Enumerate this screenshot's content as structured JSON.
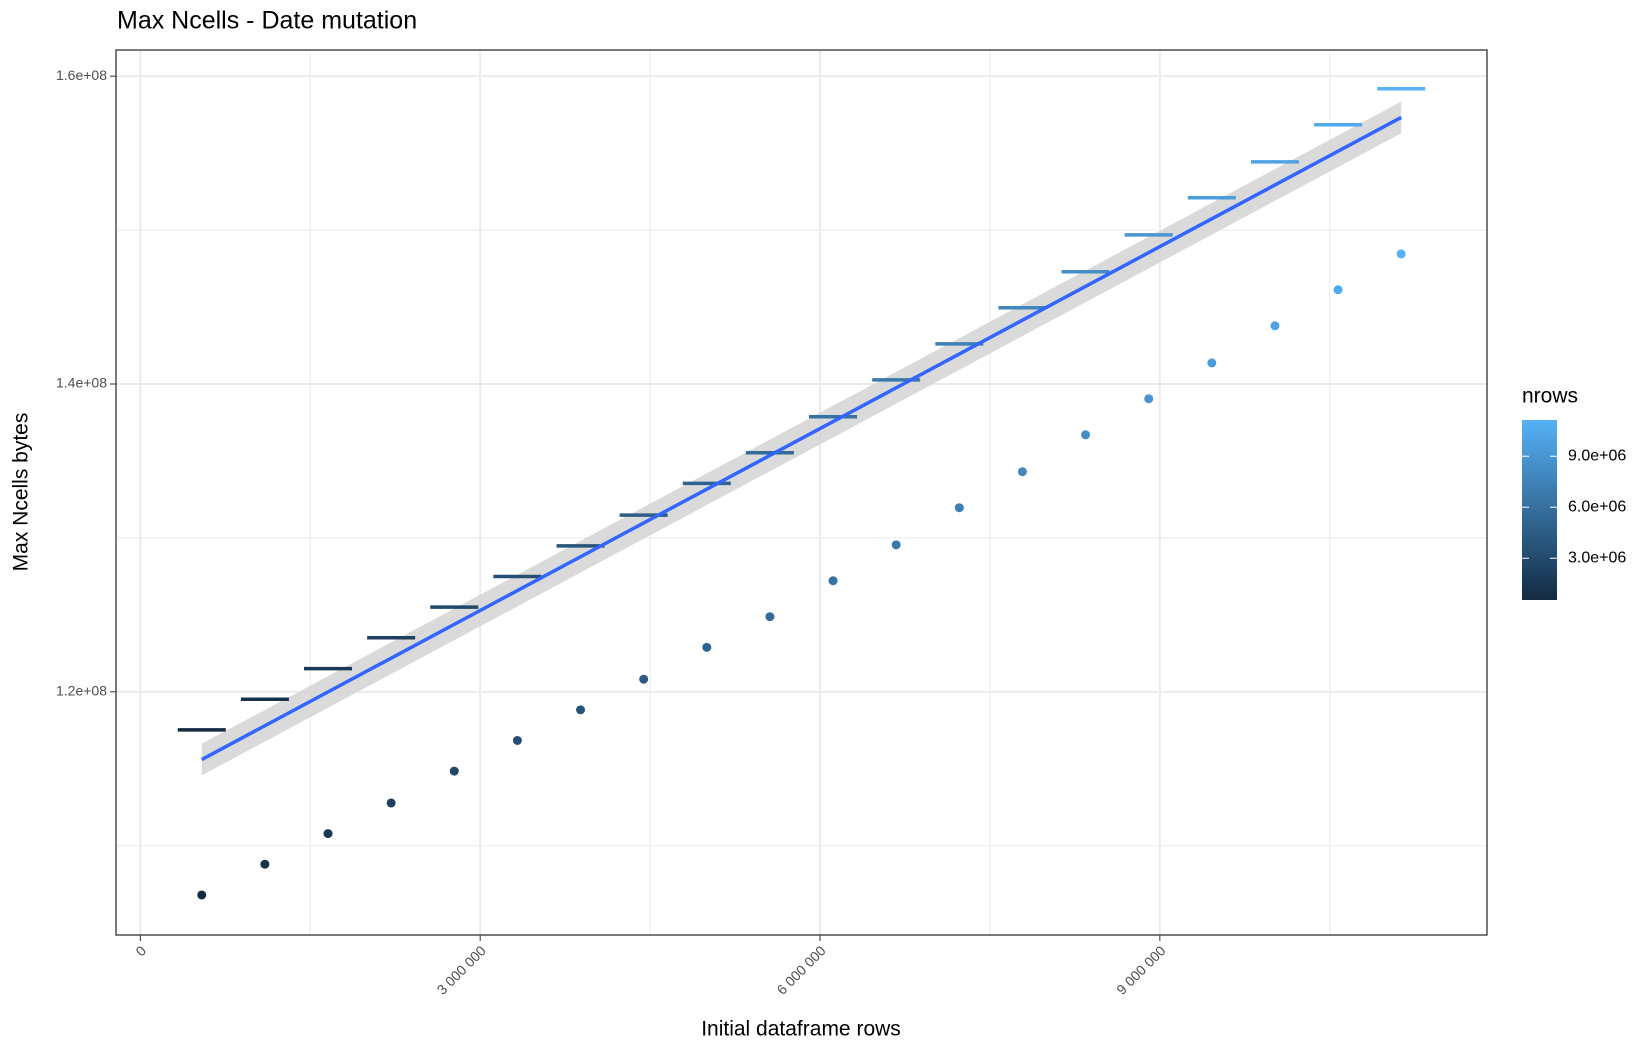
{
  "chart_data": {
    "type": "scatter",
    "title": "Max Ncells - Date mutation",
    "x_label": "Initial dataframe rows",
    "y_label": "Max Ncells bytes",
    "x": [
      542000,
      1099300,
      1656600,
      2213900,
      2771200,
      3328500,
      3885800,
      4443100,
      5000400,
      5557700,
      6115000,
      6672300,
      7229600,
      7786900,
      8344200,
      8901500,
      9458800,
      10016100,
      10573400,
      11130700
    ],
    "series": [
      {
        "mark": "point",
        "values": [
          106800000,
          108800000,
          110790000,
          112780000,
          114850000,
          116840000,
          118830000,
          120820000,
          122890000,
          124880000,
          127220000,
          129550000,
          131960000,
          134300000,
          136700000,
          139040000,
          141370000,
          143780000,
          146120000,
          148450000
        ]
      },
      {
        "mark": "dash",
        "values": [
          117530000,
          119520000,
          121510000,
          123510000,
          125500000,
          127490000,
          129480000,
          131480000,
          133540000,
          135530000,
          137870000,
          140270000,
          142610000,
          144950000,
          147290000,
          149690000,
          152100000,
          154430000,
          156840000,
          159180000
        ]
      }
    ],
    "fit": {
      "x": [
        542000,
        11130700
      ],
      "values": [
        115600000,
        157320000
      ],
      "lower": [
        114570000,
        156290000
      ],
      "upper": [
        116630000,
        158350000
      ],
      "color": "#3366ff",
      "band_color": "#d3d3d3"
    },
    "xlim": [
      -215000,
      11888000
    ],
    "ylim": [
      104200000,
      161700000
    ],
    "xticks": [
      0,
      {
        "value": 3000000,
        "label": "3 000 000"
      },
      {
        "value": 6000000,
        "label": "6 000 000"
      },
      {
        "value": 9000000,
        "label": "9 000 000"
      }
    ],
    "yticks": [
      {
        "value": 120000000,
        "label": "1.2e+08"
      },
      {
        "value": 140000000,
        "label": "1.4e+08"
      },
      {
        "value": 160000000,
        "label": "1.6e+08"
      }
    ],
    "x_minor_grid": [
      1500000,
      4500000,
      7500000,
      10500000
    ],
    "y_minor_grid": [
      110000000,
      130000000,
      150000000
    ],
    "grid": true,
    "colorbar": {
      "title": "nrows",
      "lim": [
        542000,
        11130700
      ],
      "low": "#132b43",
      "high": "#56b1f7",
      "ticks": [
        {
          "value": 3000000,
          "label": "3.0e+06"
        },
        {
          "value": 6000000,
          "label": "6.0e+06"
        },
        {
          "value": 9000000,
          "label": "9.0e+06"
        }
      ]
    }
  }
}
